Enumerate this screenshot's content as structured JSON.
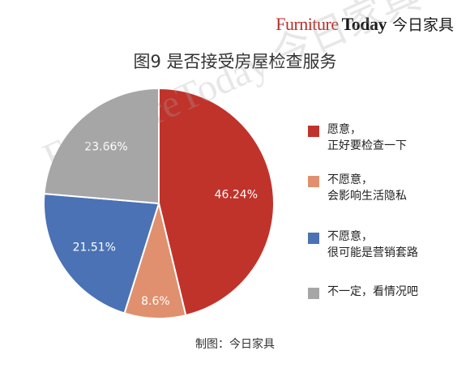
{
  "brand": {
    "furniture": "Furniture",
    "today": "Today",
    "cn": "今日家具"
  },
  "watermark": "FurnitureToday 今日家具",
  "caption": "制图：今日家具",
  "colors": {
    "willing": "#c0332b",
    "unwilling_info": "#e0906f",
    "unwilling_marketing": "#4a72b5",
    "unsure": "#a6a6a6"
  },
  "chart_data": {
    "type": "pie",
    "title": "图9  是否接受房屋检查服务",
    "slices": [
      {
        "label": "愿意，\n正好要检查一下",
        "value": 46.24,
        "display": "46.24%",
        "color": "#c0332b"
      },
      {
        "label": "不愿意，\n会影响生活隐私",
        "value": 8.6,
        "display": "8.6%",
        "color": "#e0906f"
      },
      {
        "label": "不愿意，\n很可能是营销套路",
        "value": 21.51,
        "display": "21.51%",
        "color": "#4a72b5"
      },
      {
        "label": "不一定，看情况吧",
        "value": 23.66,
        "display": "23.66%",
        "color": "#a6a6a6"
      }
    ],
    "legend_position": "right"
  }
}
